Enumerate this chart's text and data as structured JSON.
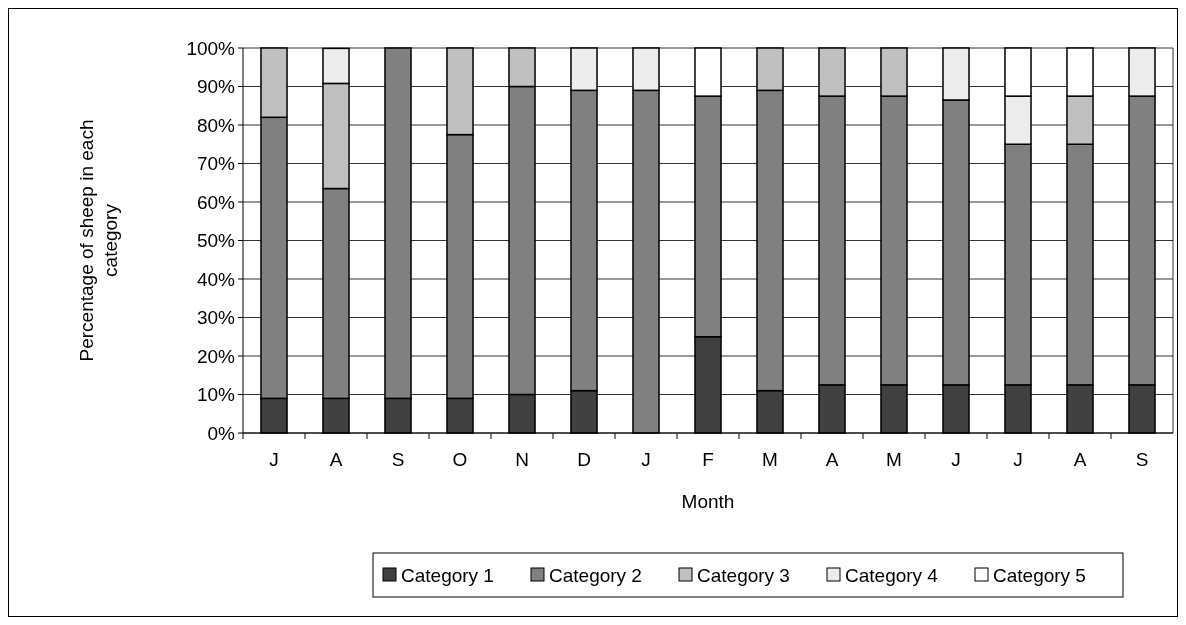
{
  "chart_data": {
    "type": "bar",
    "stacked": true,
    "xlabel": "Month",
    "ylabel": "Percentage of sheep in each category",
    "categories": [
      "J",
      "A",
      "S",
      "O",
      "N",
      "D",
      "J",
      "F",
      "M",
      "A",
      "M",
      "J",
      "J",
      "A",
      "S"
    ],
    "series": [
      {
        "name": "Category 1",
        "color": "#404040",
        "values": [
          9,
          9,
          9,
          9,
          10,
          11,
          0,
          25,
          11,
          12.5,
          12.5,
          12.5,
          12.5,
          12.5,
          12.5
        ]
      },
      {
        "name": "Category 2",
        "color": "#808080",
        "values": [
          73,
          54.5,
          91,
          68.5,
          80,
          78,
          89,
          62.5,
          78,
          75,
          75,
          74,
          62.5,
          62.5,
          75
        ]
      },
      {
        "name": "Category 3",
        "color": "#c0c0c0",
        "values": [
          18,
          27.3,
          0,
          22.5,
          10,
          0,
          0,
          0,
          11,
          12.5,
          12.5,
          0,
          0,
          12.5,
          0
        ]
      },
      {
        "name": "Category 4",
        "color": "#ececec",
        "values": [
          0,
          9.1,
          0,
          0,
          0,
          11,
          11,
          0,
          0,
          0,
          0,
          13.5,
          12.5,
          0,
          12.5
        ]
      },
      {
        "name": "Category 5",
        "color": "#ffffff",
        "values": [
          0,
          0,
          0,
          0,
          0,
          0,
          0,
          12.5,
          0,
          0,
          0,
          0,
          12.5,
          12.5,
          0
        ]
      }
    ],
    "ylim": [
      0,
      100
    ],
    "yticks": [
      {
        "value": 0,
        "label": "0%"
      },
      {
        "value": 10,
        "label": "10%"
      },
      {
        "value": 20,
        "label": "20%"
      },
      {
        "value": 30,
        "label": "30%"
      },
      {
        "value": 40,
        "label": "40%"
      },
      {
        "value": 50,
        "label": "50%"
      },
      {
        "value": 60,
        "label": "60%"
      },
      {
        "value": 70,
        "label": "70%"
      },
      {
        "value": 80,
        "label": "80%"
      },
      {
        "value": 90,
        "label": "90%"
      },
      {
        "value": 100,
        "label": "100%"
      }
    ],
    "grid": "y",
    "legend": "bottom"
  }
}
